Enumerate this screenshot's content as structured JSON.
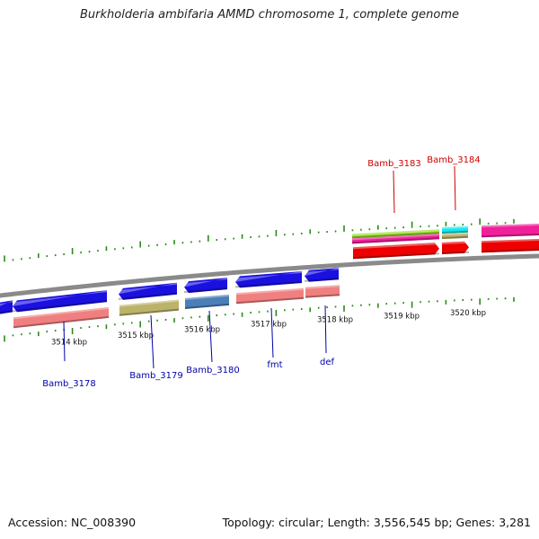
{
  "title": "Burkholderia ambifaria AMMD chromosome 1, complete genome",
  "footer": {
    "accession": "Accession: NC_008390",
    "topology": "Topology: circular; Length: 3,556,545 bp; Genes: 3,281"
  },
  "colors": {
    "backbone": "#8a8a8a",
    "tick": "#2a8a1a",
    "forward_label": "#cc0000",
    "reverse_label": "#0000aa",
    "blue": "#1a10e0",
    "salmon": "#f08080",
    "khaki": "#bcb36a",
    "steel": "#4a7fb8",
    "green": "#9ae02a",
    "magenta": "#f0209a",
    "red": "#ee0000",
    "cyan": "#10e8f0"
  },
  "kbp_labels": [
    {
      "text": "3514 kbp",
      "pos": 3514
    },
    {
      "text": "3515 kbp",
      "pos": 3515
    },
    {
      "text": "3516 kbp",
      "pos": 3516
    },
    {
      "text": "3517 kbp",
      "pos": 3517
    },
    {
      "text": "3518 kbp",
      "pos": 3518
    },
    {
      "text": "3519 kbp",
      "pos": 3519
    },
    {
      "text": "3520 kbp",
      "pos": 3520
    }
  ],
  "gene_labels": [
    {
      "name": "Bamb_3178",
      "strand": "reverse"
    },
    {
      "name": "Bamb_3179",
      "strand": "reverse"
    },
    {
      "name": "Bamb_3180",
      "strand": "reverse"
    },
    {
      "name": "fmt",
      "strand": "reverse"
    },
    {
      "name": "def",
      "strand": "reverse"
    },
    {
      "name": "Bamb_3183",
      "strand": "forward"
    },
    {
      "name": "Bamb_3184",
      "strand": "forward"
    }
  ]
}
